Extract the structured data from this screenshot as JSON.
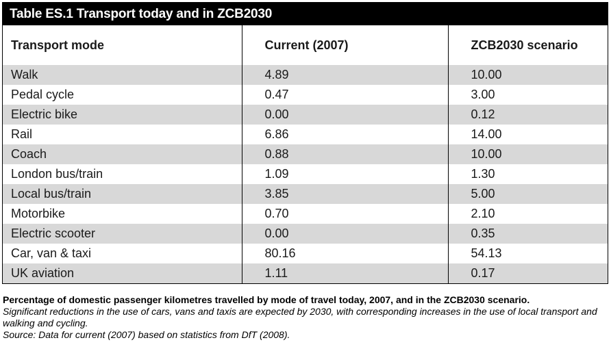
{
  "title": "Table ES.1 Transport today and in ZCB2030",
  "headers": [
    "Transport mode",
    "Current (2007)",
    "ZCB2030 scenario"
  ],
  "rows": [
    [
      "Walk",
      "4.89",
      "10.00"
    ],
    [
      "Pedal cycle",
      "0.47",
      "3.00"
    ],
    [
      "Electric bike",
      "0.00",
      "0.12"
    ],
    [
      "Rail",
      "6.86",
      "14.00"
    ],
    [
      "Coach",
      "0.88",
      "10.00"
    ],
    [
      "London bus/train",
      "1.09",
      "1.30"
    ],
    [
      "Local bus/train",
      "3.85",
      "5.00"
    ],
    [
      "Motorbike",
      "0.70",
      "2.10"
    ],
    [
      "Electric scooter",
      "0.00",
      "0.35"
    ],
    [
      "Car, van & taxi",
      "80.16",
      "54.13"
    ],
    [
      "UK aviation",
      "1.11",
      "0.17"
    ]
  ],
  "caption": {
    "heading": "Percentage of domestic passenger kilometres travelled by mode of travel today, 2007, and in the ZCB2030 scenario.",
    "note": "Significant reductions in the use of cars, vans and taxis are expected by 2030, with corresponding increases in the use of local transport and walking and cycling.",
    "source": "Source: Data for current (2007) based on statistics from DfT (2008)."
  },
  "colors": {
    "title_bg": "#000000",
    "row_shade": "#d8d8d8"
  }
}
